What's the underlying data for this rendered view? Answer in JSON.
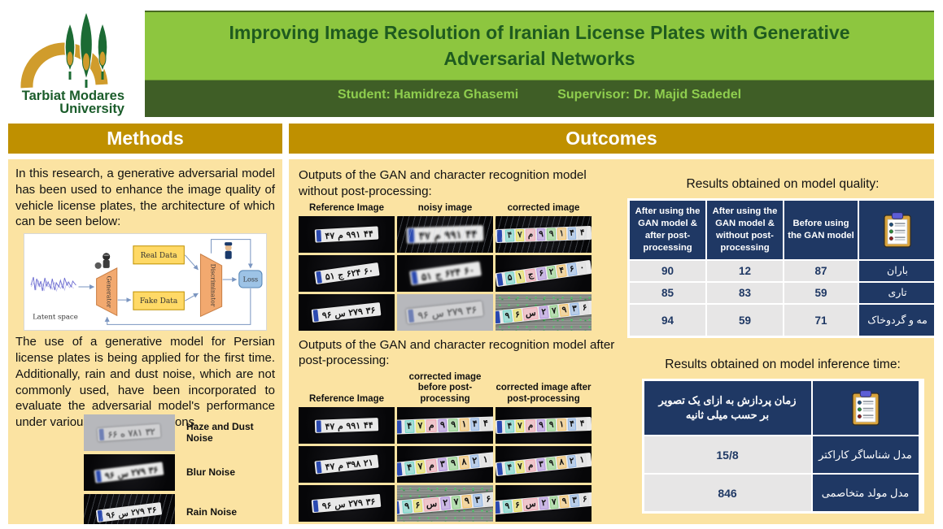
{
  "header": {
    "title": "Improving Image Resolution of Iranian License Plates with Generative Adversarial Networks",
    "student": "Student: Hamidreza Ghasemi",
    "supervisor": "Supervisor: Dr. Majid Sadedel",
    "logo": {
      "line1": "Tarbiat Modares",
      "line2": "University"
    }
  },
  "methods": {
    "heading": "Methods",
    "paragraph1": "In this research, a generative adversarial model has been used to enhance the image quality of vehicle license plates, the architecture of which can be seen below:",
    "diagram": {
      "latent": "Latent space",
      "generator": "Generator",
      "real": "Real Data",
      "fake": "Fake Data",
      "discriminator": "Discriminator",
      "loss": "Loss"
    },
    "paragraph2": "The use of a generative model for Persian license plates is being applied for the first time. Additionally, rain and dust noise, which are not commonly used, have been incorporated to evaluate the adversarial model's performance under various weather conditions.",
    "noise_examples": [
      {
        "label": "Haze and Dust Noise",
        "segments": [
          "۶۶",
          "ه",
          "۷۸۱",
          "۳۲"
        ],
        "bg": "haze",
        "faint": true,
        "tilt": -4,
        "scale": 0.95
      },
      {
        "label": "Blur Noise",
        "segments": [
          "۹۶",
          "س",
          "۲۷۹",
          "۳۶"
        ],
        "bg": "dark",
        "blur": true,
        "tilt": -7,
        "scale": 0.95
      },
      {
        "label": "Rain Noise",
        "segments": [
          "۹۶",
          "س",
          "۲۷۹",
          "۳۶"
        ],
        "bg": "dark",
        "rain": true,
        "tilt": -7,
        "scale": 0.9
      }
    ]
  },
  "outcomes": {
    "heading": "Outcomes",
    "grid1": {
      "caption": "Outputs of the GAN and character recognition model without post-processing:",
      "columns": [
        "Reference Image",
        "noisy image",
        "corrected image"
      ],
      "rows": [
        [
          {
            "segments": [
              "۴۷",
              "م",
              "۹۹۱",
              "۴۴"
            ],
            "bg": "dark",
            "tilt": -3,
            "scale": 0.95
          },
          {
            "segments": [
              "۴۷",
              "م",
              "۹۹۱",
              "۴۴"
            ],
            "bg": "dark",
            "rain": true,
            "blur": true,
            "tilt": -2,
            "scale": 1.15
          },
          {
            "segments": [
              "۴۷",
              "م",
              "۹۹۱",
              "۴۴"
            ],
            "bg": "dark",
            "rain": true,
            "boxed": true,
            "tilt": -2,
            "scale": 1.0
          }
        ],
        [
          {
            "segments": [
              "۵۱",
              "ج",
              "۶۲۴",
              "۶۰"
            ],
            "bg": "dark",
            "tilt": -8,
            "scale": 0.95
          },
          {
            "segments": [
              "۵۱",
              "ج",
              "۶۲۴",
              "۶۰"
            ],
            "bg": "dark",
            "blur": true,
            "tilt": -8,
            "scale": 1.05
          },
          {
            "segments": [
              "۵۱",
              "ج",
              "۶۲۴",
              "۶۰"
            ],
            "bg": "dark",
            "boxed": true,
            "tilt": -8,
            "scale": 1.0
          }
        ],
        [
          {
            "segments": [
              "۹۶",
              "س",
              "۲۷۹",
              "۳۶"
            ],
            "bg": "dark",
            "tilt": -6,
            "scale": 0.95
          },
          {
            "segments": [
              "۹۶",
              "س",
              "۲۷۹",
              "۳۶"
            ],
            "bg": "haze",
            "faint": true,
            "blur": true,
            "tilt": -6,
            "scale": 1.05
          },
          {
            "segments": [
              "۹۶",
              "س",
              "۲۷۹",
              "۳۶"
            ],
            "bg": "noise",
            "boxed": true,
            "tilt": -6,
            "scale": 1.0
          }
        ]
      ]
    },
    "grid2": {
      "caption": "Outputs of the GAN and character recognition model after post-processing:",
      "columns": [
        "Reference Image",
        "corrected image before post-processing",
        "corrected image after post-processing"
      ],
      "rows": [
        [
          {
            "segments": [
              "۴۷",
              "م",
              "۹۹۱",
              "۴۴"
            ],
            "bg": "dark",
            "tilt": -2,
            "scale": 0.95
          },
          {
            "segments": [
              "۴۷",
              "م",
              "۹۹۱",
              "۴۴"
            ],
            "bg": "dark",
            "boxed": true,
            "tilt": -2,
            "scale": 1.05
          },
          {
            "segments": [
              "۴۷",
              "م",
              "۹۹۱",
              "۴۴"
            ],
            "bg": "dark",
            "boxed": true,
            "tilt": -2,
            "scale": 1.0
          }
        ],
        [
          {
            "segments": [
              "۴۷",
              "م",
              "۳۹۸",
              "۲۱"
            ],
            "bg": "dark",
            "tilt": -6,
            "scale": 0.95
          },
          {
            "segments": [
              "۴۷",
              "م",
              "۳۹۸",
              "۲۱"
            ],
            "bg": "dark",
            "boxed": true,
            "tilt": -6,
            "scale": 1.05
          },
          {
            "segments": [
              "۴۷",
              "م",
              "۳۹۸",
              "۲۱"
            ],
            "bg": "dark",
            "boxed": true,
            "tilt": -6,
            "scale": 1.0
          }
        ],
        [
          {
            "segments": [
              "۹۶",
              "س",
              "۲۷۹",
              "۳۶"
            ],
            "bg": "dark",
            "tilt": -5,
            "scale": 0.95
          },
          {
            "segments": [
              "۹۶",
              "س",
              "۲۷۹",
              "۳۶"
            ],
            "bg": "noise",
            "boxed": true,
            "tilt": -5,
            "scale": 1.05
          },
          {
            "segments": [
              "۹۶",
              "س",
              "۲۷۹",
              "۳۶"
            ],
            "bg": "dark",
            "boxed": true,
            "tilt": -5,
            "scale": 1.0
          }
        ]
      ]
    },
    "quality_table": {
      "title": "Results obtained on model quality:",
      "col_headers": [
        "After using the GAN model & after post-processing",
        "After using the GAN model & without post-processing",
        "Before using the GAN model"
      ],
      "rows": [
        {
          "values": [
            "90",
            "12",
            "87"
          ],
          "label": "باران"
        },
        {
          "values": [
            "85",
            "83",
            "59"
          ],
          "label": "تاری"
        },
        {
          "values": [
            "94",
            "59",
            "71"
          ],
          "label": "مه و گردوخاک"
        }
      ]
    },
    "time_table": {
      "title": "Results obtained on model inference time:",
      "header": "زمان پردازش به ازای یک تصویر بر حسب میلی ثانیه",
      "rows": [
        {
          "value": "15/8",
          "label": "مدل شناساگر کاراکتر"
        },
        {
          "value": "846",
          "label": "مدل مولد متخاصمی"
        }
      ]
    }
  },
  "colors": {
    "title_bar_bg": "#8dc63f",
    "title_text": "#1f5b1f",
    "subtitle_bar_bg": "#3f5e26",
    "subtitle_text": "#8fce4e",
    "section_header_bg": "#bf9000",
    "section_header_text": "#ffffff",
    "panel_bg": "#fbe3a2",
    "table_header_bg": "#1f3864",
    "table_cell_bg": "#e7e6e6",
    "plate_strip_blue": "#2a49b0"
  }
}
